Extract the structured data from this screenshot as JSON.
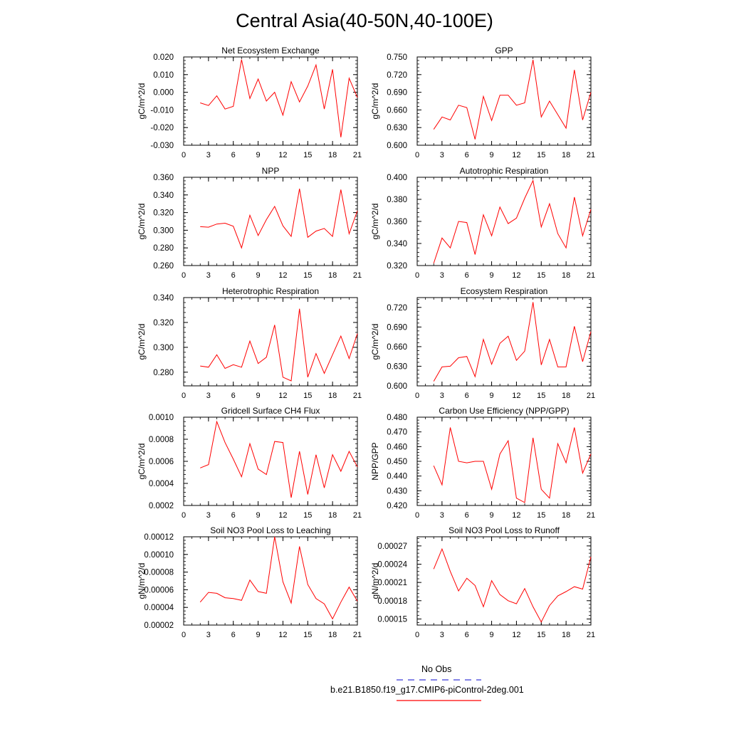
{
  "page": {
    "title": "Central Asia(40-50N,40-100E)"
  },
  "legend": {
    "entries": [
      {
        "label": "No Obs",
        "color": "#3b3bd6",
        "style": "dashed"
      },
      {
        "label": "b.e21.B1850.f19_g17.CMIP6-piControl-2deg.001",
        "color": "#ff0000",
        "style": "solid"
      }
    ]
  },
  "chart_data": [
    {
      "type": "line",
      "title": "Net Ecosystem Exchange",
      "ylabel": "gC/m^2/d",
      "xlim": [
        0,
        21
      ],
      "ylim": [
        -0.03,
        0.02
      ],
      "xticks": [
        0,
        3,
        6,
        9,
        12,
        15,
        18,
        21
      ],
      "yticks": [
        -0.03,
        -0.02,
        -0.01,
        0.0,
        0.01,
        0.02
      ],
      "ytick_labels": [
        "-0.030",
        "-0.020",
        "-0.010",
        "0.000",
        "0.010",
        "0.020"
      ],
      "series": [
        {
          "color": "#ff0000",
          "x": [
            2,
            3,
            4,
            5,
            6,
            7,
            8,
            9,
            10,
            11,
            12,
            13,
            14,
            15,
            16,
            17,
            18,
            19,
            20,
            21
          ],
          "y": [
            -0.006,
            -0.0075,
            -0.002,
            -0.0095,
            -0.008,
            0.0185,
            -0.0035,
            0.0075,
            -0.005,
            0.0,
            -0.013,
            0.006,
            -0.0055,
            0.0035,
            0.0155,
            -0.0095,
            0.013,
            -0.0255,
            0.008,
            -0.003
          ]
        }
      ]
    },
    {
      "type": "line",
      "title": "GPP",
      "ylabel": "gC/m^2/d",
      "xlim": [
        0,
        21
      ],
      "ylim": [
        0.6,
        0.75
      ],
      "xticks": [
        0,
        3,
        6,
        9,
        12,
        15,
        18,
        21
      ],
      "yticks": [
        0.6,
        0.63,
        0.66,
        0.69,
        0.72,
        0.75
      ],
      "ytick_labels": [
        "0.600",
        "0.630",
        "0.660",
        "0.690",
        "0.720",
        "0.750"
      ],
      "series": [
        {
          "color": "#ff0000",
          "x": [
            2,
            3,
            4,
            5,
            6,
            7,
            8,
            9,
            10,
            11,
            12,
            13,
            14,
            15,
            16,
            17,
            18,
            19,
            20,
            21
          ],
          "y": [
            0.627,
            0.648,
            0.643,
            0.668,
            0.664,
            0.61,
            0.683,
            0.642,
            0.685,
            0.685,
            0.668,
            0.672,
            0.745,
            0.648,
            0.675,
            0.652,
            0.629,
            0.728,
            0.643,
            0.69
          ]
        }
      ]
    },
    {
      "type": "line",
      "title": "NPP",
      "ylabel": "gC/m^2/d",
      "xlim": [
        0,
        21
      ],
      "ylim": [
        0.26,
        0.36
      ],
      "xticks": [
        0,
        3,
        6,
        9,
        12,
        15,
        18,
        21
      ],
      "yticks": [
        0.26,
        0.28,
        0.3,
        0.32,
        0.34,
        0.36
      ],
      "ytick_labels": [
        "0.260",
        "0.280",
        "0.300",
        "0.320",
        "0.340",
        "0.360"
      ],
      "series": [
        {
          "color": "#ff0000",
          "x": [
            2,
            3,
            4,
            5,
            6,
            7,
            8,
            9,
            10,
            11,
            12,
            13,
            14,
            15,
            16,
            17,
            18,
            19,
            20,
            21
          ],
          "y": [
            0.304,
            0.3035,
            0.307,
            0.308,
            0.3045,
            0.28,
            0.317,
            0.294,
            0.312,
            0.327,
            0.305,
            0.293,
            0.347,
            0.292,
            0.299,
            0.302,
            0.293,
            0.346,
            0.296,
            0.322
          ]
        }
      ]
    },
    {
      "type": "line",
      "title": "Autotrophic Respiration",
      "ylabel": "gC/m^2/d",
      "xlim": [
        0,
        21
      ],
      "ylim": [
        0.32,
        0.4
      ],
      "xticks": [
        0,
        3,
        6,
        9,
        12,
        15,
        18,
        21
      ],
      "yticks": [
        0.32,
        0.34,
        0.36,
        0.38,
        0.4
      ],
      "ytick_labels": [
        "0.320",
        "0.340",
        "0.360",
        "0.380",
        "0.400"
      ],
      "series": [
        {
          "color": "#ff0000",
          "x": [
            2,
            3,
            4,
            5,
            6,
            7,
            8,
            9,
            10,
            11,
            12,
            13,
            14,
            15,
            16,
            17,
            18,
            19,
            20,
            21
          ],
          "y": [
            0.322,
            0.345,
            0.336,
            0.36,
            0.359,
            0.33,
            0.366,
            0.347,
            0.373,
            0.358,
            0.363,
            0.381,
            0.397,
            0.355,
            0.376,
            0.349,
            0.336,
            0.382,
            0.347,
            0.371
          ]
        }
      ]
    },
    {
      "type": "line",
      "title": "Heterotrophic Respiration",
      "ylabel": "gC/m^2/d",
      "xlim": [
        0,
        21
      ],
      "ylim": [
        0.269,
        0.34
      ],
      "xticks": [
        0,
        3,
        6,
        9,
        12,
        15,
        18,
        21
      ],
      "yticks": [
        0.28,
        0.3,
        0.32,
        0.34
      ],
      "ytick_labels": [
        "0.280",
        "0.300",
        "0.320",
        "0.340"
      ],
      "series": [
        {
          "color": "#ff0000",
          "x": [
            2,
            3,
            4,
            5,
            6,
            7,
            8,
            9,
            10,
            11,
            12,
            13,
            14,
            15,
            16,
            17,
            18,
            19,
            20,
            21
          ],
          "y": [
            0.285,
            0.284,
            0.294,
            0.283,
            0.286,
            0.284,
            0.305,
            0.287,
            0.292,
            0.318,
            0.276,
            0.273,
            0.331,
            0.276,
            0.295,
            0.279,
            0.294,
            0.309,
            0.291,
            0.311
          ]
        }
      ]
    },
    {
      "type": "line",
      "title": "Ecosystem Respiration",
      "ylabel": "gC/m^2/d",
      "xlim": [
        0,
        21
      ],
      "ylim": [
        0.6,
        0.735
      ],
      "xticks": [
        0,
        3,
        6,
        9,
        12,
        15,
        18,
        21
      ],
      "yticks": [
        0.6,
        0.63,
        0.66,
        0.69,
        0.72
      ],
      "ytick_labels": [
        "0.600",
        "0.630",
        "0.660",
        "0.690",
        "0.720"
      ],
      "series": [
        {
          "color": "#ff0000",
          "x": [
            2,
            3,
            4,
            5,
            6,
            7,
            8,
            9,
            10,
            11,
            12,
            13,
            14,
            15,
            16,
            17,
            18,
            19,
            20,
            21
          ],
          "y": [
            0.607,
            0.629,
            0.63,
            0.643,
            0.645,
            0.614,
            0.671,
            0.633,
            0.665,
            0.676,
            0.639,
            0.653,
            0.728,
            0.632,
            0.671,
            0.629,
            0.629,
            0.691,
            0.637,
            0.683
          ]
        }
      ]
    },
    {
      "type": "line",
      "title": "Gridcell Surface CH4 Flux",
      "ylabel": "gC/m^2/d",
      "xlim": [
        0,
        21
      ],
      "ylim": [
        0.0002,
        0.001
      ],
      "xticks": [
        0,
        3,
        6,
        9,
        12,
        15,
        18,
        21
      ],
      "yticks": [
        0.0002,
        0.0004,
        0.0006,
        0.0008,
        0.001
      ],
      "ytick_labels": [
        "0.0002",
        "0.0004",
        "0.0006",
        "0.0008",
        "0.0010"
      ],
      "series": [
        {
          "color": "#ff0000",
          "x": [
            2,
            3,
            4,
            5,
            6,
            7,
            8,
            9,
            10,
            11,
            12,
            13,
            14,
            15,
            16,
            17,
            18,
            19,
            20,
            21
          ],
          "y": [
            0.00054,
            0.00057,
            0.00096,
            0.00077,
            0.00062,
            0.00046,
            0.00076,
            0.00053,
            0.00048,
            0.00078,
            0.00077,
            0.00027,
            0.00069,
            0.0003,
            0.00066,
            0.00036,
            0.00066,
            0.00051,
            0.00069,
            0.00055
          ]
        }
      ]
    },
    {
      "type": "line",
      "title": "Carbon Use Efficiency (NPP/GPP)",
      "ylabel": "NPP/GPP",
      "xlim": [
        0,
        21
      ],
      "ylim": [
        0.42,
        0.48
      ],
      "xticks": [
        0,
        3,
        6,
        9,
        12,
        15,
        18,
        21
      ],
      "yticks": [
        0.42,
        0.43,
        0.44,
        0.45,
        0.46,
        0.47,
        0.48
      ],
      "ytick_labels": [
        "0.420",
        "0.430",
        "0.440",
        "0.450",
        "0.460",
        "0.470",
        "0.480"
      ],
      "series": [
        {
          "color": "#ff0000",
          "x": [
            2,
            3,
            4,
            5,
            6,
            7,
            8,
            9,
            10,
            11,
            12,
            13,
            14,
            15,
            16,
            17,
            18,
            19,
            20,
            21
          ],
          "y": [
            0.447,
            0.434,
            0.473,
            0.45,
            0.449,
            0.45,
            0.45,
            0.431,
            0.455,
            0.464,
            0.425,
            0.422,
            0.466,
            0.431,
            0.425,
            0.462,
            0.449,
            0.473,
            0.442,
            0.455
          ]
        }
      ]
    },
    {
      "type": "line",
      "title": "Soil NO3 Pool Loss to Leaching",
      "ylabel": "gN/m^2/d",
      "xlim": [
        0,
        21
      ],
      "ylim": [
        2e-05,
        0.00012
      ],
      "xticks": [
        0,
        3,
        6,
        9,
        12,
        15,
        18,
        21
      ],
      "yticks": [
        2e-05,
        4e-05,
        6e-05,
        8e-05,
        0.0001,
        0.00012
      ],
      "ytick_labels": [
        "0.00002",
        "0.00004",
        "0.00006",
        "0.00008",
        "0.00010",
        "0.00012"
      ],
      "series": [
        {
          "color": "#ff0000",
          "x": [
            2,
            3,
            4,
            5,
            6,
            7,
            8,
            9,
            10,
            11,
            12,
            13,
            14,
            15,
            16,
            17,
            18,
            19,
            20,
            21
          ],
          "y": [
            4.6e-05,
            5.7e-05,
            5.6e-05,
            5.1e-05,
            5e-05,
            4.8e-05,
            7.1e-05,
            5.8e-05,
            5.6e-05,
            0.00012,
            6.9e-05,
            4.5e-05,
            0.000109,
            6.6e-05,
            5e-05,
            4.4e-05,
            2.7e-05,
            4.6e-05,
            6.3e-05,
            4.7e-05
          ]
        }
      ]
    },
    {
      "type": "line",
      "title": "Soil NO3 Pool Loss to Runoff",
      "ylabel": "gN/m^2/d",
      "xlim": [
        0,
        21
      ],
      "ylim": [
        0.00014,
        0.000285
      ],
      "xticks": [
        0,
        3,
        6,
        9,
        12,
        15,
        18,
        21
      ],
      "yticks": [
        0.00015,
        0.00018,
        0.00021,
        0.00024,
        0.00027
      ],
      "ytick_labels": [
        "0.00015",
        "0.00018",
        "0.00021",
        "0.00024",
        "0.00027"
      ],
      "series": [
        {
          "color": "#ff0000",
          "x": [
            2,
            3,
            4,
            5,
            6,
            7,
            8,
            9,
            10,
            11,
            12,
            13,
            14,
            15,
            16,
            17,
            18,
            19,
            20,
            21
          ],
          "y": [
            0.000232,
            0.000265,
            0.000228,
            0.000196,
            0.000217,
            0.000205,
            0.00017,
            0.000213,
            0.00019,
            0.00018,
            0.000175,
            0.0002,
            0.00017,
            0.000145,
            0.000172,
            0.000188,
            0.000195,
            0.000203,
            0.000199,
            0.000252
          ]
        }
      ]
    }
  ]
}
